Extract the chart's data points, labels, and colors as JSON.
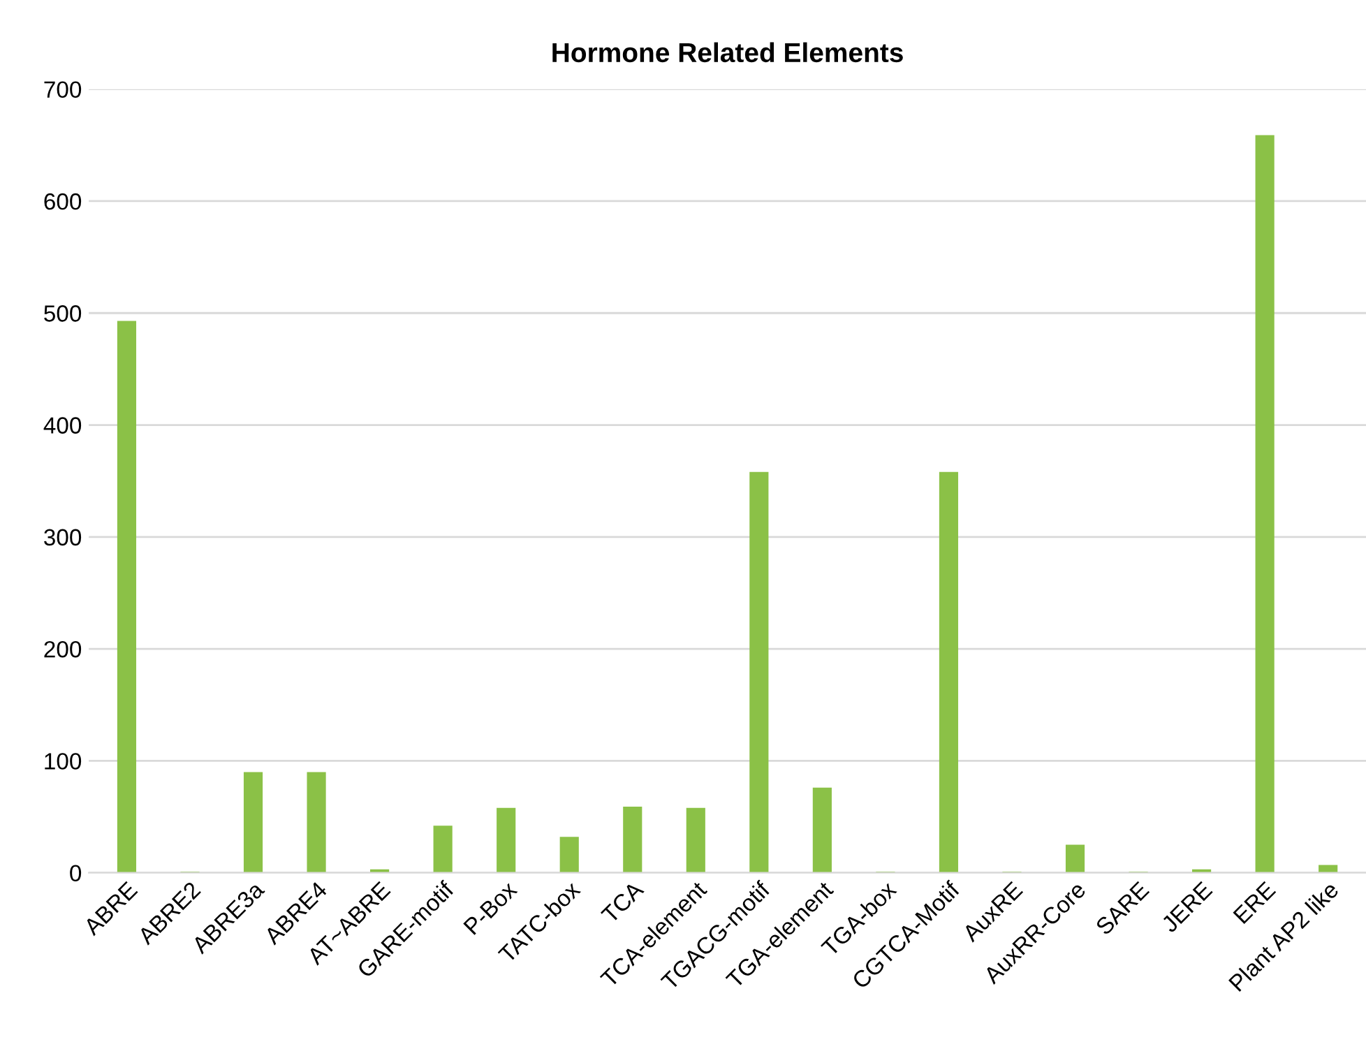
{
  "chart_data": {
    "type": "bar",
    "title": "Hormone Related Elements",
    "categories": [
      "ABRE",
      "ABRE2",
      "ABRE3a",
      "ABRE4",
      "AT~ABRE",
      "GARE-motif",
      "P-Box",
      "TATC-box",
      "TCA",
      "TCA-element",
      "TGACG-motif",
      "TGA-element",
      "TGA-box",
      "CGTCA-Motif",
      "AuxRE",
      "AuxRR-Core",
      "SARE",
      "JERE",
      "ERE",
      "Plant AP2 like"
    ],
    "values": [
      493,
      1,
      90,
      90,
      3,
      42,
      58,
      32,
      59,
      58,
      358,
      76,
      1,
      358,
      1,
      25,
      1,
      3,
      659,
      7
    ],
    "color": "#8bc147",
    "ylim": [
      0,
      700
    ],
    "yticks": [
      0,
      100,
      200,
      300,
      400,
      500,
      600,
      700
    ],
    "grid": "y"
  }
}
